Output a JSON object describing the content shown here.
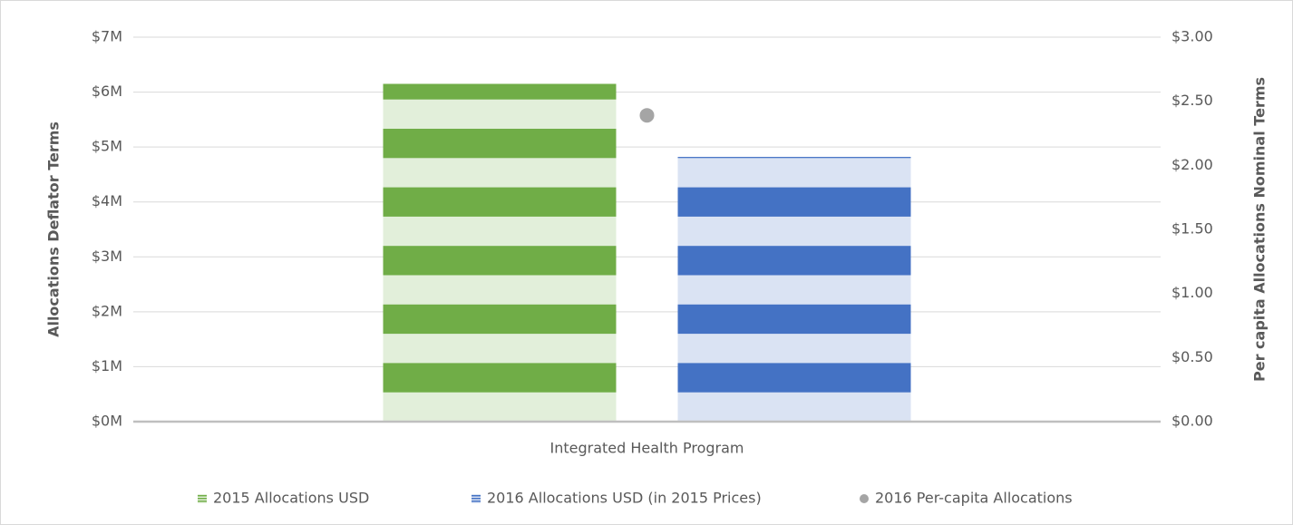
{
  "chart_data": {
    "type": "bar",
    "categories": [
      "Integrated Health Program"
    ],
    "ylabel": "Allocations Deflator Terms",
    "y2label": "Per capita Allocations Nominal Terms",
    "series": [
      {
        "name": "2015 Allocations USD",
        "color": "#70ad47",
        "stripe_color": "#e2efda",
        "values": [
          6150000
        ]
      },
      {
        "name": "2016 Allocations USD (in 2015 Prices)",
        "color": "#4472c4",
        "stripe_color": "#dae3f3",
        "values": [
          4820000
        ]
      },
      {
        "name": "2016 Per-capita Allocations",
        "type": "scatter",
        "axis": "y2",
        "color": "#a5a5a5",
        "values": [
          2.39
        ]
      }
    ],
    "ylim": [
      0,
      7000000
    ],
    "yticks": [
      {
        "value": 0,
        "label": "$0M"
      },
      {
        "value": 1000000,
        "label": "$1M"
      },
      {
        "value": 2000000,
        "label": "$2M"
      },
      {
        "value": 3000000,
        "label": "$3M"
      },
      {
        "value": 4000000,
        "label": "$4M"
      },
      {
        "value": 5000000,
        "label": "$5M"
      },
      {
        "value": 6000000,
        "label": "$6M"
      },
      {
        "value": 7000000,
        "label": "$7M"
      }
    ],
    "y2lim": [
      0,
      3
    ],
    "y2ticks": [
      {
        "value": 0,
        "label": "$0.00"
      },
      {
        "value": 0.5,
        "label": "$0.50"
      },
      {
        "value": 1,
        "label": "$1.00"
      },
      {
        "value": 1.5,
        "label": "$1.50"
      },
      {
        "value": 2,
        "label": "$2.00"
      },
      {
        "value": 2.5,
        "label": "$2.50"
      },
      {
        "value": 3,
        "label": "$3.00"
      }
    ],
    "grid": true,
    "legend": "bottom"
  }
}
